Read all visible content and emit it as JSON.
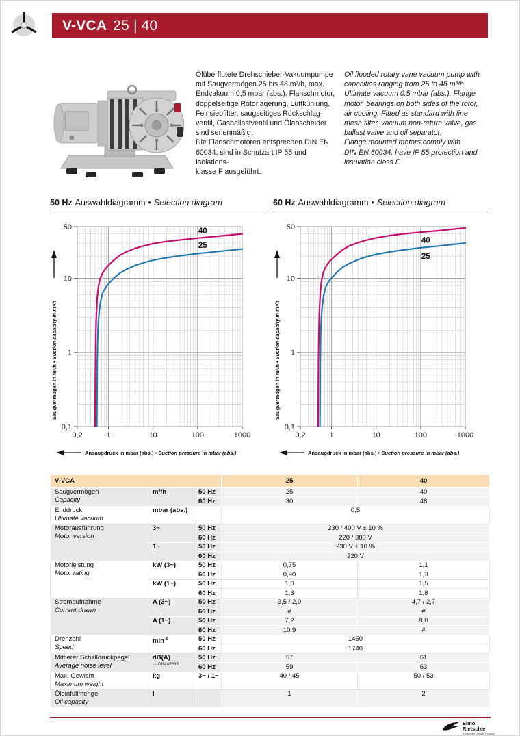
{
  "page": {
    "header": {
      "model_bold": "V-VCA",
      "model_rest": "25 | 40"
    },
    "description_de": "Ölüberflutete Drehschieber-Vakuumpumpe\nmit Saugvermögen 25 bis 48 m³/h, max.\nEndvakuum 0,5 mbar (abs.). Flanschmotor,\ndoppelseitige Rotorlagerung, Luftkühlung.\nFeinsiebfilter, saugseitiges Rückschlag-\nventil, Gasballastventil und Ölabscheider\nsind serienmäßig.\nDie Flanschmotoren entsprechen DIN EN\n60034, sind in Schutzart IP 55 und Isolations-\nklasse F ausgeführt.",
    "description_en": "Oil flooded rotary vane vacuum pump with\ncapacities ranging from 25 to 48 m³/h.\nUltimate vacuum 0.5 mbar (abs.). Flange\nmotor, bearings on both sides of the rotor,\nair cooling. Fitted as standard with fine\nmesh filter, vacuum non-return valve, gas\nballast valve and oil separator.\nFlange mounted motors comply with\nDIN EN 60034, have IP 55 protection and\ninsulation class F.",
    "footer": {
      "brand_line1": "Elmo",
      "brand_line2": "Rietschle",
      "brand_tagline": "A Gardner Denver Product"
    }
  },
  "colors": {
    "accent_red": "#a81c2e",
    "header_peach": "#f8dcb4",
    "curve_40": "#c40d6e",
    "curve_25": "#2579b2",
    "grid_minor": "#c9c9c9",
    "grid_major": "#9b9b9b"
  },
  "chart_data": [
    {
      "type": "line",
      "freq_label": "50 Hz",
      "title_de": "Auswahldiagramm",
      "title_sep": "•",
      "title_en": "Selection diagram",
      "xlabel_de": "Ansaugdruck in mbar (abs.)",
      "xlabel_en": "Suction pressure in mbar (abs.)",
      "ylabel_de": "Saugvermögen in m³/h",
      "ylabel_en": "Suction capacity in m³/h",
      "x_scale": "log",
      "y_scale": "log",
      "xlim": [
        0.2,
        1000
      ],
      "ylim": [
        0.1,
        50
      ],
      "grid": true,
      "x_ticks": [
        {
          "v": 0.2,
          "label": "0,2"
        },
        {
          "v": 1,
          "label": "1"
        },
        {
          "v": 10,
          "label": "10"
        },
        {
          "v": 100,
          "label": "100"
        },
        {
          "v": 1000,
          "label": "1000"
        }
      ],
      "y_ticks": [
        {
          "v": 50,
          "label": "50"
        },
        {
          "v": 10,
          "label": "10"
        },
        {
          "v": 1,
          "label": "1"
        },
        {
          "v": 0.1,
          "label": "0,1"
        }
      ],
      "series": [
        {
          "name": "40",
          "color": "#c40d6e",
          "label_pos": {
            "x": 130,
            "y": 44
          },
          "points": [
            [
              0.5,
              0.1
            ],
            [
              0.505,
              0.3
            ],
            [
              0.51,
              0.7
            ],
            [
              0.52,
              1.6
            ],
            [
              0.535,
              3
            ],
            [
              0.56,
              5.5
            ],
            [
              0.6,
              8
            ],
            [
              0.65,
              10
            ],
            [
              0.75,
              12
            ],
            [
              0.9,
              14
            ],
            [
              1,
              15
            ],
            [
              1.3,
              17.5
            ],
            [
              1.8,
              20.5
            ],
            [
              2.5,
              22.8
            ],
            [
              4,
              25.5
            ],
            [
              6,
              27.3
            ],
            [
              10,
              29.5
            ],
            [
              20,
              31.5
            ],
            [
              40,
              33
            ],
            [
              100,
              35
            ],
            [
              250,
              36.8
            ],
            [
              500,
              38.3
            ],
            [
              1000,
              40
            ]
          ]
        },
        {
          "name": "25",
          "color": "#2579b2",
          "label_pos": {
            "x": 130,
            "y": 28
          },
          "points": [
            [
              0.55,
              0.1
            ],
            [
              0.555,
              0.3
            ],
            [
              0.56,
              0.7
            ],
            [
              0.57,
              1.4
            ],
            [
              0.59,
              2.4
            ],
            [
              0.62,
              3.6
            ],
            [
              0.67,
              5
            ],
            [
              0.75,
              6.5
            ],
            [
              0.9,
              7.8
            ],
            [
              1,
              8.4
            ],
            [
              1.3,
              10
            ],
            [
              1.8,
              11.8
            ],
            [
              2.5,
              13.2
            ],
            [
              4,
              15
            ],
            [
              6,
              16.2
            ],
            [
              10,
              17.6
            ],
            [
              20,
              19
            ],
            [
              40,
              20.2
            ],
            [
              100,
              21.6
            ],
            [
              250,
              22.9
            ],
            [
              500,
              23.9
            ],
            [
              1000,
              25
            ]
          ]
        }
      ]
    },
    {
      "type": "line",
      "freq_label": "60 Hz",
      "title_de": "Auswahldiagramm",
      "title_sep": "•",
      "title_en": "Selection diagram",
      "xlabel_de": "Ansaugdruck in mbar (abs.)",
      "xlabel_en": "Suction pressure in mbar (abs.)",
      "ylabel_de": "Saugvermögen in m³/h",
      "ylabel_en": "Suction capacity in m³/h",
      "x_scale": "log",
      "y_scale": "log",
      "xlim": [
        0.2,
        1000
      ],
      "ylim": [
        0.1,
        50
      ],
      "grid": true,
      "x_ticks": [
        {
          "v": 0.2,
          "label": "0,2"
        },
        {
          "v": 1,
          "label": "1"
        },
        {
          "v": 10,
          "label": "10"
        },
        {
          "v": 100,
          "label": "100"
        },
        {
          "v": 1000,
          "label": "1000"
        }
      ],
      "y_ticks": [
        {
          "v": 50,
          "label": "50"
        },
        {
          "v": 10,
          "label": "10"
        },
        {
          "v": 1,
          "label": "1"
        },
        {
          "v": 0.1,
          "label": "0,1"
        }
      ],
      "series": [
        {
          "name": "40",
          "color": "#c40d6e",
          "label_pos": {
            "x": 130,
            "y": 33
          },
          "points": [
            [
              0.5,
              0.1
            ],
            [
              0.505,
              0.3
            ],
            [
              0.51,
              0.8
            ],
            [
              0.52,
              1.8
            ],
            [
              0.535,
              3.5
            ],
            [
              0.56,
              6.5
            ],
            [
              0.6,
              9.5
            ],
            [
              0.65,
              12
            ],
            [
              0.75,
              14.5
            ],
            [
              0.9,
              17
            ],
            [
              1,
              18
            ],
            [
              1.3,
              21
            ],
            [
              1.8,
              24.5
            ],
            [
              2.5,
              27.5
            ],
            [
              4,
              30.5
            ],
            [
              6,
              32.8
            ],
            [
              10,
              35.3
            ],
            [
              20,
              37.8
            ],
            [
              40,
              39.8
            ],
            [
              100,
              42
            ],
            [
              250,
              44
            ],
            [
              500,
              46
            ],
            [
              1000,
              48
            ]
          ]
        },
        {
          "name": "25",
          "color": "#2579b2",
          "label_pos": {
            "x": 130,
            "y": 20
          },
          "points": [
            [
              0.55,
              0.1
            ],
            [
              0.555,
              0.3
            ],
            [
              0.56,
              0.8
            ],
            [
              0.57,
              1.7
            ],
            [
              0.59,
              2.9
            ],
            [
              0.62,
              4.3
            ],
            [
              0.67,
              6
            ],
            [
              0.75,
              7.8
            ],
            [
              0.9,
              9.4
            ],
            [
              1,
              10.1
            ],
            [
              1.3,
              12
            ],
            [
              1.8,
              14.2
            ],
            [
              2.5,
              15.9
            ],
            [
              4,
              18
            ],
            [
              6,
              19.5
            ],
            [
              10,
              21.1
            ],
            [
              20,
              22.8
            ],
            [
              40,
              24.2
            ],
            [
              100,
              25.9
            ],
            [
              250,
              27.4
            ],
            [
              500,
              28.7
            ],
            [
              1000,
              30
            ]
          ]
        }
      ]
    }
  ],
  "table": {
    "header": {
      "title": "V-VCA",
      "col1": "25",
      "col2": "40"
    },
    "groups": [
      {
        "label_de": "Saugvermögen",
        "label_en": "Capacity",
        "rows": [
          {
            "unit": "m³/h",
            "unit_rows": 2,
            "freq": "50 Hz",
            "values": [
              "25",
              "40"
            ]
          },
          {
            "freq": "60 Hz",
            "values": [
              "30",
              "48"
            ]
          }
        ]
      },
      {
        "label_de": "Enddruck",
        "label_en": "Ultimate vacuum",
        "rows": [
          {
            "unit": "mbar (abs.)",
            "unit_rows": 1,
            "freq": "",
            "span": "0,5",
            "h": 26
          }
        ]
      },
      {
        "label_de": "Motorausführung",
        "label_en": "Motor version",
        "rows": [
          {
            "unit": "3~",
            "unit_rows": 2,
            "freq": "50 Hz",
            "span": "230 / 400 V ± 10 %"
          },
          {
            "freq": "60 Hz",
            "span": "220 / 380 V"
          },
          {
            "unit": "1~",
            "unit_rows": 2,
            "freq": "50 Hz",
            "span": "230 V ± 10 %"
          },
          {
            "freq": "60 Hz",
            "span": "220 V"
          }
        ]
      },
      {
        "label_de": "Motorleistung",
        "label_en": "Motor rating",
        "rows": [
          {
            "unit": "kW (3~)",
            "unit_rows": 2,
            "freq": "50 Hz",
            "values": [
              "0,75",
              "1,1"
            ]
          },
          {
            "freq": "60 Hz",
            "values": [
              "0,90",
              "1,3"
            ]
          },
          {
            "unit": "kW (1~)",
            "unit_rows": 2,
            "freq": "50 Hz",
            "values": [
              "1,0",
              "1,5"
            ]
          },
          {
            "freq": "60 Hz",
            "values": [
              "1,3",
              "1,8"
            ]
          }
        ]
      },
      {
        "label_de": "Stromaufnahme",
        "label_en": "Current drawn",
        "rows": [
          {
            "unit": "A (3~)",
            "unit_rows": 2,
            "freq": "50 Hz",
            "values": [
              "3,5 / 2,0",
              "4,7 / 2,7"
            ]
          },
          {
            "freq": "60 Hz",
            "values": [
              "#",
              "#"
            ]
          },
          {
            "unit": "A (1~)",
            "unit_rows": 2,
            "freq": "50 Hz",
            "values": [
              "7,2",
              "9,0"
            ]
          },
          {
            "freq": "60 Hz",
            "values": [
              "10,9",
              "#"
            ]
          }
        ]
      },
      {
        "label_de": "Drehzahl",
        "label_en": "Speed",
        "rows": [
          {
            "unit": "min",
            "unit_sup": "-1",
            "unit_rows": 2,
            "freq": "50 Hz",
            "span": "1450"
          },
          {
            "freq": "60 Hz",
            "span": "1740"
          }
        ]
      },
      {
        "label_de": "Mittlerer Schalldruckpegel",
        "label_en": "Average noise level",
        "rows": [
          {
            "unit": "dB(A)",
            "unit_note": "→ DIN 45635",
            "unit_rows": 2,
            "freq": "50 Hz",
            "values": [
              "57",
              "61"
            ]
          },
          {
            "freq": "60 Hz",
            "values": [
              "59",
              "63"
            ]
          }
        ]
      },
      {
        "label_de": "Max. Gewicht",
        "label_en": "Maximum weight",
        "rows": [
          {
            "unit": "kg",
            "unit_rows": 1,
            "freq": "3~ / 1~",
            "values": [
              "40 / 45",
              "50 / 53"
            ],
            "h": 26
          }
        ]
      },
      {
        "label_de": "Öleinfüllmenge",
        "label_en": "Oil capacity",
        "rows": [
          {
            "unit": "l",
            "unit_rows": 1,
            "freq": "",
            "values": [
              "1",
              "2"
            ],
            "h": 26
          }
        ]
      }
    ]
  }
}
